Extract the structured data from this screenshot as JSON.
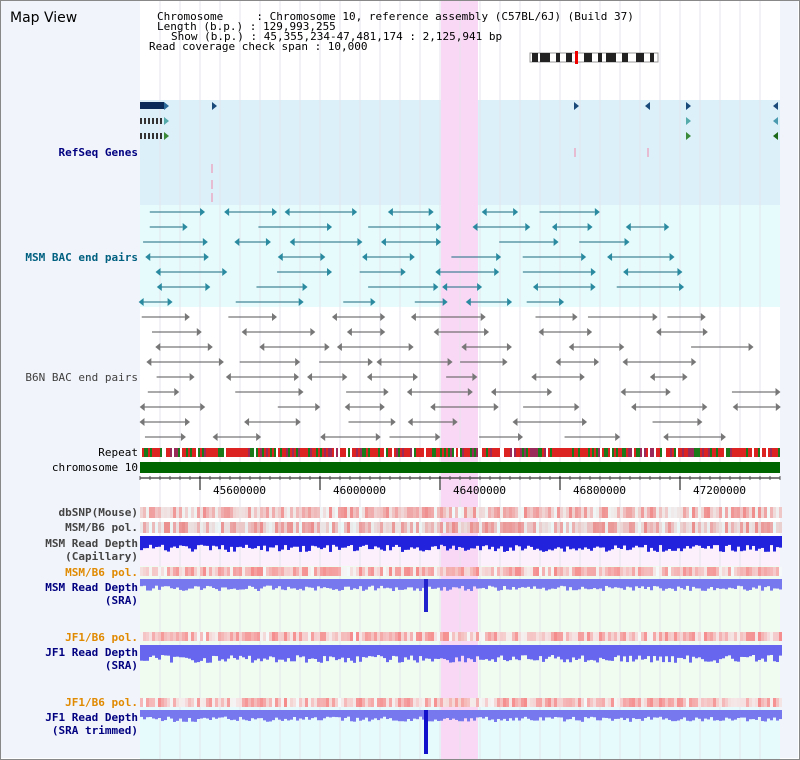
{
  "header": {
    "title": "Map View",
    "chromosome_line": "Chromosome     : Chromosome 10, reference assembly (C57BL/6J) (Build 37)",
    "length_line": "Length (b.p.) : 129,993,255",
    "show_line": "Show (b.p.) : 45,355,234-47,481,174 : 2,125,941 bp",
    "coverage_line": "Read coverage check span : 10,000"
  },
  "tracks": {
    "refseq": "RefSeq Genes",
    "msm_bac": "MSM BAC end pairs",
    "b6n_bac": "B6N BAC end pairs",
    "repeat": "Repeat",
    "chromosome": "chromosome 10",
    "dbsnp": "dbSNP(Mouse)",
    "msm_b6_pol_1": "MSM/B6 pol.",
    "msm_read_depth_cap_1": "MSM Read Depth",
    "msm_read_depth_cap_2": "(Capillary)",
    "msm_b6_pol_2": "MSM/B6 pol.",
    "msm_read_depth_sra_1": "MSM Read Depth",
    "msm_read_depth_sra_2": "(SRA)",
    "jf1_b6_pol_1": "JF1/B6 pol.",
    "jf1_read_depth_sra_1": "JF1 Read Depth",
    "jf1_read_depth_sra_2": "(SRA)",
    "jf1_b6_pol_2": "JF1/B6 pol.",
    "jf1_read_depth_trim_1": "JF1 Read Depth",
    "jf1_read_depth_trim_2": "(SRA trimmed)"
  },
  "axis": {
    "ticks": [
      "45600000",
      "46000000",
      "46400000",
      "46800000",
      "47200000"
    ]
  },
  "colors": {
    "refseq_bg": "#dcf0fa",
    "bac_bg": "#e6fbfb",
    "highlight": "#f8d8f4",
    "chromosome": "#006600",
    "msm_label": "#000080",
    "pol_label": "#e08a00",
    "depth_blue": "#3333ee",
    "depth_light": "#8888ee"
  }
}
